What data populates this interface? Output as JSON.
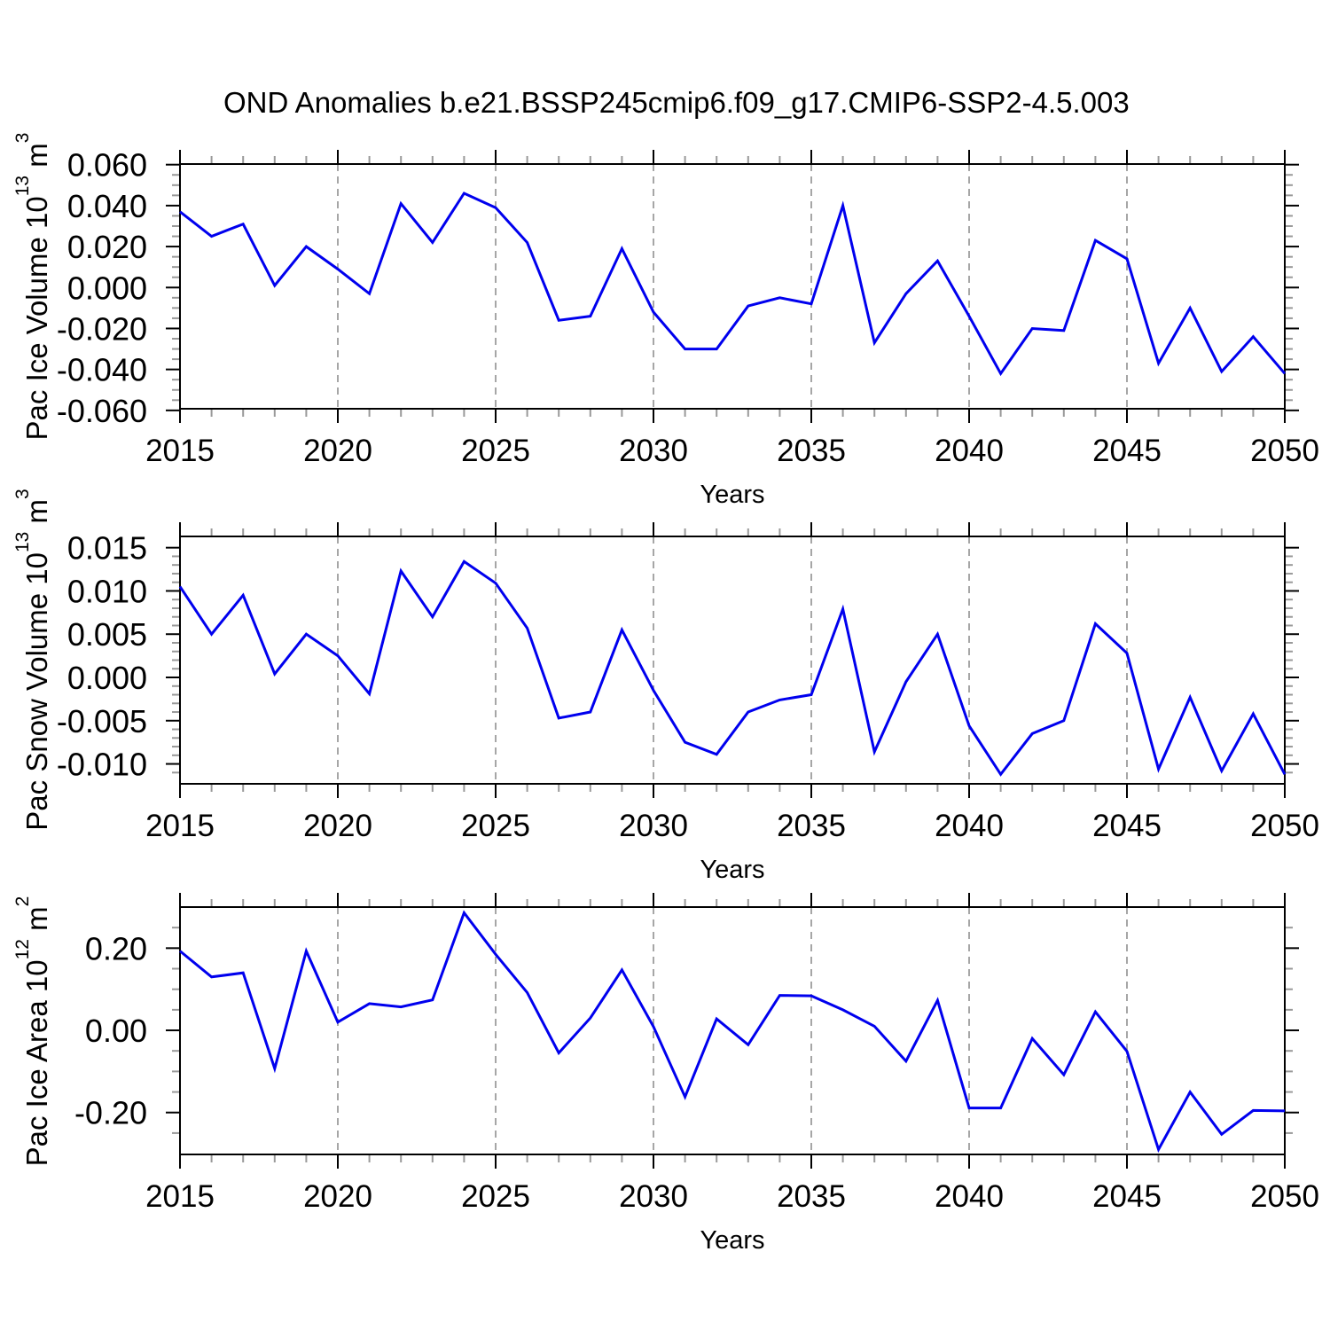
{
  "title": "OND Anomalies b.e21.BSSP245cmip6.f09_g17.CMIP6-SSP2-4.5.003",
  "chart_data": {
    "type": "line",
    "title": "OND Anomalies b.e21.BSSP245cmip6.f09_g17.CMIP6-SSP2-4.5.003",
    "legend": "none",
    "line_color": "#0000ee",
    "frame_color": "#000000",
    "minor_tick_color": "#999999",
    "gridline_color": "#888888",
    "x_axis": {
      "label": "Years",
      "range": [
        2015,
        2050
      ],
      "ticks": [
        2015,
        2020,
        2025,
        2030,
        2035,
        2040,
        2045,
        2050
      ],
      "tick_labels": [
        "2015",
        "2020",
        "2025",
        "2030",
        "2035",
        "2040",
        "2045",
        "2050"
      ],
      "minor_step": 1,
      "dashed_gridlines_at": [
        2020,
        2025,
        2030,
        2035,
        2040,
        2045
      ],
      "years": [
        2015,
        2016,
        2017,
        2018,
        2019,
        2020,
        2021,
        2022,
        2023,
        2024,
        2025,
        2026,
        2027,
        2028,
        2029,
        2030,
        2031,
        2032,
        2033,
        2034,
        2035,
        2036,
        2037,
        2038,
        2039,
        2040,
        2041,
        2042,
        2043,
        2044,
        2045,
        2046,
        2047,
        2048,
        2049,
        2050
      ]
    },
    "panels": [
      {
        "name": "pac-ice-volume",
        "ylabel_text": "Pac Ice Volume 10^13 m^3",
        "ylabel_parts": {
          "prefix": "Pac Ice Volume 10",
          "exp": "13",
          "unit": " m",
          "unit_exp": "3"
        },
        "xlabel": "Years",
        "ylim": [
          -0.0592,
          0.0603
        ],
        "y_tick_values": [
          0.06,
          0.04,
          0.02,
          0.0,
          -0.02,
          -0.04,
          -0.06
        ],
        "y_tick_labels": [
          "0.060",
          "0.040",
          "0.020",
          "0.000",
          "-0.020",
          "-0.040",
          "-0.060"
        ],
        "y_minor_step": 0.005,
        "values": [
          0.037,
          0.025,
          0.031,
          0.001,
          0.02,
          0.009,
          -0.003,
          0.041,
          0.022,
          0.046,
          0.039,
          0.022,
          -0.016,
          -0.014,
          0.019,
          -0.012,
          -0.03,
          -0.03,
          -0.009,
          -0.005,
          -0.008,
          0.04,
          -0.027,
          -0.003,
          0.013,
          -0.014,
          -0.042,
          -0.02,
          -0.021,
          0.023,
          0.014,
          -0.037,
          -0.01,
          -0.041,
          -0.024,
          -0.042
        ]
      },
      {
        "name": "pac-snow-volume",
        "ylabel_text": "Pac Snow Volume 10^13 m^3",
        "ylabel_parts": {
          "prefix": "Pac Snow Volume 10",
          "exp": "13",
          "unit": " m",
          "unit_exp": "3"
        },
        "xlabel": "Years",
        "ylim": [
          -0.0123,
          0.0163
        ],
        "y_tick_values": [
          0.015,
          0.01,
          0.005,
          0.0,
          -0.005,
          -0.01
        ],
        "y_tick_labels": [
          "0.015",
          "0.010",
          "0.005",
          "0.000",
          "-0.005",
          "-0.010"
        ],
        "y_minor_step": 0.001,
        "values": [
          0.0105,
          0.005,
          0.0095,
          0.0004,
          0.005,
          0.0025,
          -0.0019,
          0.0123,
          0.007,
          0.0134,
          0.0109,
          0.0057,
          -0.0047,
          -0.004,
          0.0055,
          -0.0015,
          -0.0075,
          -0.0089,
          -0.004,
          -0.0026,
          -0.002,
          0.0079,
          -0.0086,
          -0.0005,
          0.005,
          -0.0056,
          -0.0112,
          -0.0065,
          -0.005,
          0.0062,
          0.0028,
          -0.0106,
          -0.0023,
          -0.0108,
          -0.0042,
          -0.0112
        ]
      },
      {
        "name": "pac-ice-area",
        "ylabel_text": "Pac Ice Area 10^12 m^2",
        "ylabel_parts": {
          "prefix": "Pac Ice Area 10",
          "exp": "12",
          "unit": " m",
          "unit_exp": "2"
        },
        "xlabel": "Years",
        "ylim": [
          -0.302,
          0.3
        ],
        "y_tick_values": [
          0.2,
          0.0,
          -0.2
        ],
        "y_tick_labels": [
          "0.20",
          "0.00",
          "-0.20"
        ],
        "y_minor_step": 0.05,
        "values": [
          0.193,
          0.13,
          0.14,
          -0.093,
          0.193,
          0.02,
          0.065,
          0.057,
          0.074,
          0.286,
          0.185,
          0.092,
          -0.055,
          0.03,
          0.147,
          0.009,
          -0.162,
          0.028,
          -0.035,
          0.085,
          0.084,
          0.05,
          0.01,
          -0.075,
          0.073,
          -0.189,
          -0.189,
          -0.02,
          -0.108,
          0.045,
          -0.051,
          -0.29,
          -0.15,
          -0.253,
          -0.195,
          -0.196
        ]
      }
    ]
  }
}
